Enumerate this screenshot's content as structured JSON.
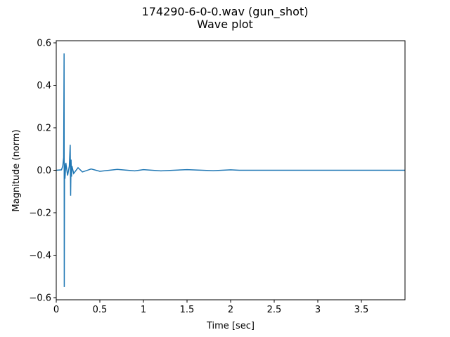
{
  "chart_data": {
    "type": "line",
    "title": "174290-6-0-0.wav (gun_shot)",
    "subtitle": "Wave plot",
    "xlabel": "Time [sec]",
    "ylabel": "Magnitude (norm)",
    "xlim": [
      0,
      4.0
    ],
    "ylim": [
      -0.61,
      0.61
    ],
    "xticks": [
      0,
      0.5,
      1,
      1.5,
      2,
      2.5,
      3,
      3.5
    ],
    "xtick_labels": [
      "0",
      "0.5",
      "1",
      "1.5",
      "2",
      "2.5",
      "3",
      "3.5"
    ],
    "yticks": [
      -0.6,
      -0.4,
      -0.2,
      0.0,
      0.2,
      0.4,
      0.6
    ],
    "ytick_labels": [
      "−0.6",
      "−0.4",
      "−0.2",
      "0.0",
      "0.2",
      "0.4",
      "0.6"
    ],
    "grid": false,
    "line_color": "#1f77b4",
    "series": [
      {
        "x": [
          0.0,
          0.06,
          0.075,
          0.085,
          0.09,
          0.092,
          0.095,
          0.1,
          0.11,
          0.13,
          0.15,
          0.16,
          0.165,
          0.17,
          0.175,
          0.18,
          0.2,
          0.25,
          0.3,
          0.4,
          0.5,
          0.7,
          0.9,
          1.0,
          1.2,
          1.5,
          1.8,
          2.0,
          2.1,
          2.5,
          3.0,
          3.5,
          4.0
        ],
        "y": [
          0.0,
          0.002,
          0.02,
          0.06,
          0.55,
          -0.55,
          0.03,
          -0.04,
          0.035,
          -0.025,
          0.02,
          0.12,
          -0.12,
          0.05,
          -0.03,
          0.02,
          -0.015,
          0.012,
          -0.008,
          0.006,
          -0.005,
          0.004,
          -0.003,
          0.003,
          -0.003,
          0.003,
          -0.002,
          0.002,
          0.0,
          0.0,
          0.0,
          0.0,
          0.0
        ]
      }
    ]
  }
}
